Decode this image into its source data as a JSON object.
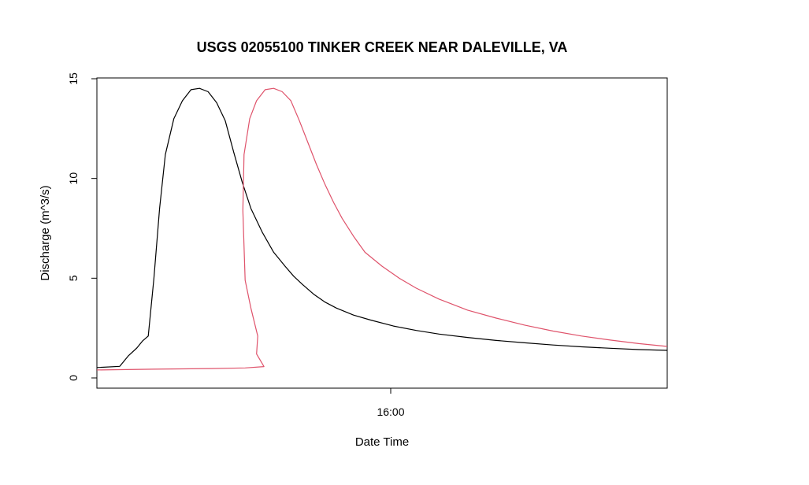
{
  "chart_data": {
    "type": "line",
    "title": "USGS 02055100 TINKER CREEK NEAR DALEVILLE, VA",
    "xlabel": "Date Time",
    "ylabel": "Discharge (m^3/s)",
    "ylim": [
      0,
      15
    ],
    "yticks": [
      "0",
      "5",
      "10",
      "15"
    ],
    "xticks": [
      "16:00"
    ],
    "legend": "none",
    "grid": false,
    "series": [
      {
        "color": "#000000",
        "points": [
          [
            0.0,
            0.52
          ],
          [
            0.04,
            0.58
          ],
          [
            0.055,
            1.1
          ],
          [
            0.07,
            1.5
          ],
          [
            0.08,
            1.85
          ],
          [
            0.09,
            2.1
          ],
          [
            0.1,
            5.0
          ],
          [
            0.11,
            8.5
          ],
          [
            0.12,
            11.2
          ],
          [
            0.135,
            13.0
          ],
          [
            0.15,
            13.9
          ],
          [
            0.165,
            14.45
          ],
          [
            0.18,
            14.52
          ],
          [
            0.195,
            14.35
          ],
          [
            0.21,
            13.8
          ],
          [
            0.225,
            12.9
          ],
          [
            0.24,
            11.3
          ],
          [
            0.255,
            9.8
          ],
          [
            0.27,
            8.5
          ],
          [
            0.29,
            7.3
          ],
          [
            0.31,
            6.3
          ],
          [
            0.33,
            5.6
          ],
          [
            0.345,
            5.1
          ],
          [
            0.36,
            4.7
          ],
          [
            0.38,
            4.2
          ],
          [
            0.4,
            3.8
          ],
          [
            0.42,
            3.5
          ],
          [
            0.45,
            3.15
          ],
          [
            0.48,
            2.9
          ],
          [
            0.52,
            2.6
          ],
          [
            0.56,
            2.38
          ],
          [
            0.6,
            2.2
          ],
          [
            0.65,
            2.03
          ],
          [
            0.7,
            1.88
          ],
          [
            0.75,
            1.76
          ],
          [
            0.8,
            1.65
          ],
          [
            0.85,
            1.56
          ],
          [
            0.9,
            1.49
          ],
          [
            0.95,
            1.42
          ],
          [
            1.0,
            1.38
          ]
        ]
      },
      {
        "color": "#DF536B",
        "points": [
          [
            0.0,
            0.4
          ],
          [
            0.1,
            0.44
          ],
          [
            0.2,
            0.47
          ],
          [
            0.26,
            0.5
          ],
          [
            0.293,
            0.57
          ],
          [
            0.28,
            1.2
          ],
          [
            0.282,
            2.1
          ],
          [
            0.27,
            3.5
          ],
          [
            0.26,
            4.9
          ],
          [
            0.256,
            8.4
          ],
          [
            0.258,
            11.2
          ],
          [
            0.268,
            13.0
          ],
          [
            0.28,
            13.9
          ],
          [
            0.295,
            14.45
          ],
          [
            0.31,
            14.52
          ],
          [
            0.325,
            14.35
          ],
          [
            0.34,
            13.9
          ],
          [
            0.355,
            12.9
          ],
          [
            0.37,
            11.8
          ],
          [
            0.385,
            10.7
          ],
          [
            0.4,
            9.7
          ],
          [
            0.415,
            8.8
          ],
          [
            0.43,
            8.0
          ],
          [
            0.45,
            7.1
          ],
          [
            0.47,
            6.3
          ],
          [
            0.5,
            5.6
          ],
          [
            0.53,
            5.0
          ],
          [
            0.56,
            4.5
          ],
          [
            0.6,
            3.95
          ],
          [
            0.65,
            3.4
          ],
          [
            0.7,
            3.0
          ],
          [
            0.75,
            2.65
          ],
          [
            0.8,
            2.35
          ],
          [
            0.85,
            2.1
          ],
          [
            0.9,
            1.9
          ],
          [
            0.95,
            1.72
          ],
          [
            1.0,
            1.58
          ]
        ]
      }
    ]
  }
}
